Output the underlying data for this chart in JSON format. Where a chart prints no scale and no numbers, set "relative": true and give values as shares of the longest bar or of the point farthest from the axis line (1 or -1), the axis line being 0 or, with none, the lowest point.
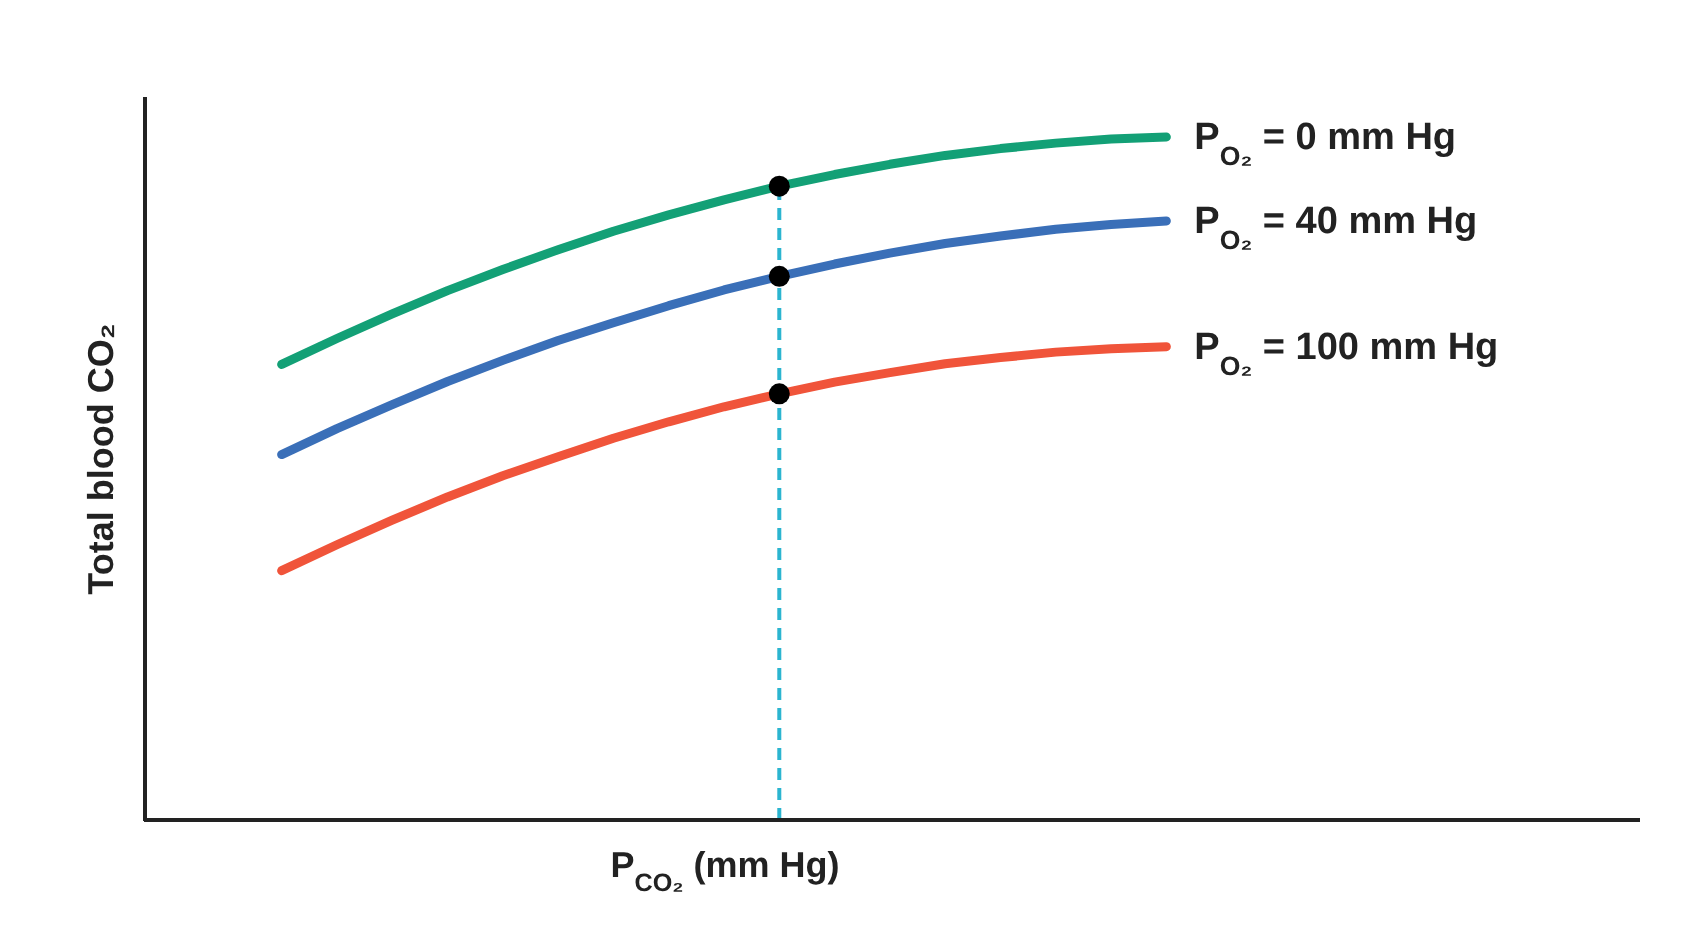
{
  "chart_data": {
    "type": "line",
    "relative": true,
    "xlabel": "P$_{CO₂}$ (mm Hg)",
    "ylabel": "Total blood CO₂",
    "tick_labels": false,
    "legend": false,
    "grid": false,
    "line_style": "solid",
    "categories": [
      null,
      null,
      null,
      null,
      null,
      null,
      null,
      null,
      null,
      null,
      null,
      null,
      null,
      null,
      null,
      null,
      null
    ],
    "series": [
      {
        "name": "P$_{O₂}$ = 0 mm Hg",
        "color": "#13a076",
        "values": [
          0.667,
          0.705,
          0.741,
          0.775,
          0.806,
          0.835,
          0.862,
          0.886,
          0.908,
          0.928,
          0.945,
          0.96,
          0.973,
          0.983,
          0.991,
          0.997,
          1.0
        ]
      },
      {
        "name": "P$_{O₂}$ = 40 mm Hg",
        "color": "#3a6fb8",
        "values": [
          0.535,
          0.573,
          0.608,
          0.642,
          0.673,
          0.702,
          0.728,
          0.753,
          0.776,
          0.796,
          0.814,
          0.83,
          0.844,
          0.855,
          0.865,
          0.872,
          0.877
        ]
      },
      {
        "name": "P$_{O₂}$ = 100 mm Hg",
        "color": "#f0543a",
        "values": [
          0.365,
          0.403,
          0.439,
          0.473,
          0.504,
          0.532,
          0.559,
          0.583,
          0.605,
          0.624,
          0.641,
          0.655,
          0.668,
          0.677,
          0.685,
          0.69,
          0.693
        ]
      }
    ]
  }
}
